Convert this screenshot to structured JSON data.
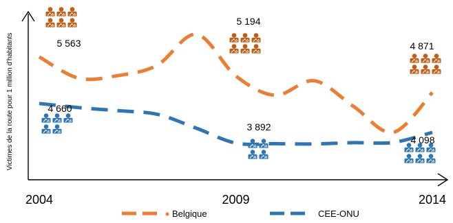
{
  "chart_data": {
    "type": "line",
    "title": "",
    "ylabel": "Victimes de la route pour 1 million d'habitants",
    "xlabel": "",
    "x_ticks": [
      "2004",
      "2009",
      "2014"
    ],
    "grid": false,
    "legend_position": "bottom",
    "series": [
      {
        "name": "Belgique",
        "color": "#ED7D31",
        "x": [
          2004,
          2005,
          2006,
          2007,
          2008,
          2009,
          2010,
          2011,
          2012,
          2013,
          2014
        ],
        "values": [
          5563,
          5150,
          5200,
          5400,
          6000,
          5194,
          4820,
          5100,
          4600,
          4100,
          4871
        ],
        "data_labels": [
          {
            "x": 2004,
            "text": "5 563"
          },
          {
            "x": 2009,
            "text": "5 194"
          },
          {
            "x": 2014,
            "text": "4 871"
          }
        ]
      },
      {
        "name": "CEE-ONU",
        "color": "#2E75B6",
        "x": [
          2004,
          2005,
          2006,
          2007,
          2008,
          2009,
          2010,
          2011,
          2012,
          2013,
          2014
        ],
        "values": [
          4660,
          4580,
          4520,
          4450,
          4180,
          3892,
          3880,
          3875,
          3900,
          3905,
          4098
        ],
        "data_labels": [
          {
            "x": 2004,
            "text": "4 660"
          },
          {
            "x": 2009,
            "text": "3 892"
          },
          {
            "x": 2014,
            "text": "4 098"
          }
        ]
      }
    ],
    "icon_name": "car-accident-person-icon"
  }
}
